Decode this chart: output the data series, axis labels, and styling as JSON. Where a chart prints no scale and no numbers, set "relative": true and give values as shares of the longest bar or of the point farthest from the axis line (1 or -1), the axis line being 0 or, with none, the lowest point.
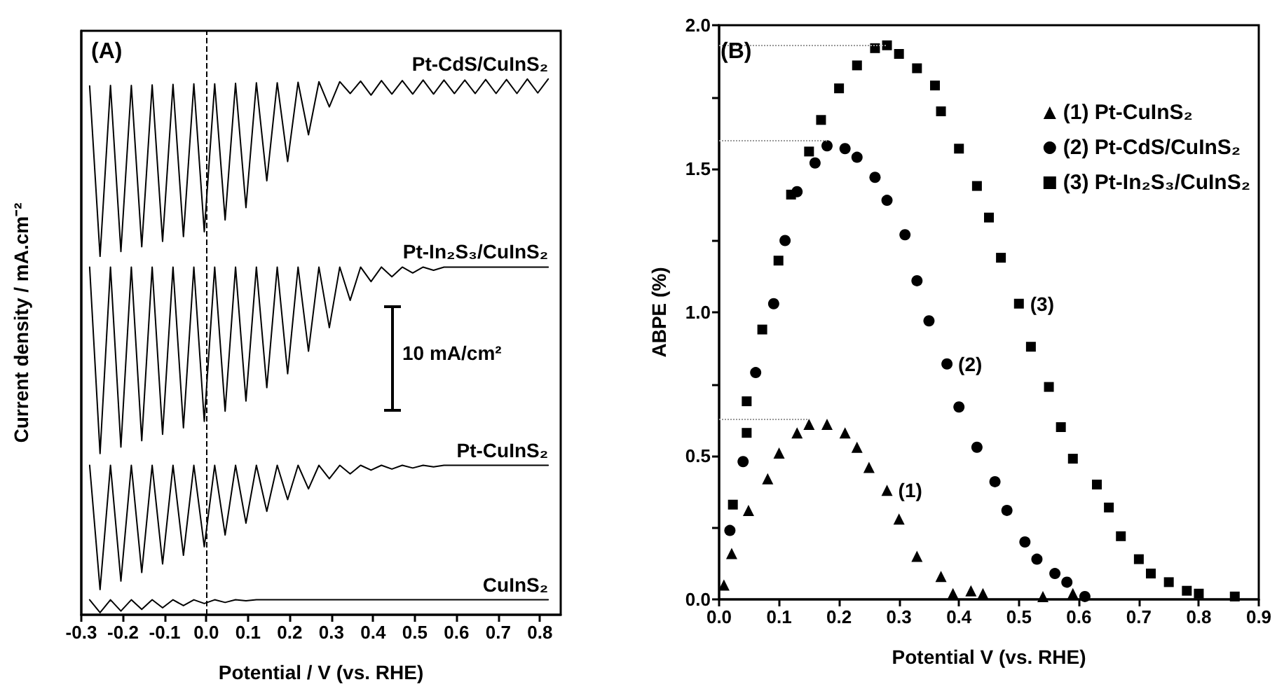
{
  "chart_data": [
    {
      "type": "line",
      "title": "(A)",
      "xlabel": "Potential / V (vs. RHE)",
      "ylabel": "Current density / mA.cm⁻²",
      "relative": true,
      "legend": false,
      "grid": false,
      "marker": "none",
      "line_style": "solid",
      "xlim": [
        -0.3,
        0.85
      ],
      "xticks": [
        -0.3,
        -0.2,
        -0.1,
        {
          "value": 0,
          "label": "0.0"
        },
        0.1,
        0.2,
        0.3,
        0.4,
        0.5,
        0.6,
        0.7,
        0.8
      ],
      "annotations": [
        "10 mA/cm²"
      ],
      "ref_lines": [
        {
          "axis": "x",
          "value": 0,
          "color": "#000000",
          "line_style": "dashed"
        }
      ],
      "series": [
        {
          "name": "Pt-CdS/CuInS₂",
          "color": "#000000",
          "x": [
            -0.28,
            -0.255,
            -0.23,
            -0.205,
            -0.18,
            -0.155,
            -0.13,
            -0.105,
            -0.08,
            -0.055,
            -0.03,
            -0.005,
            0.02,
            0.045,
            0.07,
            0.095,
            0.12,
            0.145,
            0.17,
            0.195,
            0.22,
            0.245,
            0.27,
            0.295,
            0.32,
            0.345,
            0.37,
            0.395,
            0.42,
            0.445,
            0.47,
            0.495,
            0.52,
            0.545,
            0.57,
            0.595,
            0.62,
            0.645,
            0.67,
            0.695,
            0.72,
            0.745,
            0.77,
            0.795,
            0.82
          ],
          "values": [
            0.987,
            0.669,
            0.988,
            0.678,
            0.988,
            0.687,
            0.989,
            0.697,
            0.99,
            0.706,
            0.991,
            0.715,
            0.991,
            0.737,
            0.992,
            0.76,
            0.993,
            0.81,
            0.993,
            0.846,
            0.994,
            0.896,
            0.995,
            0.948,
            0.995,
            0.973,
            0.996,
            0.97,
            0.997,
            0.972,
            0.997,
            0.972,
            0.998,
            0.972,
            0.998,
            0.973,
            0.998,
            0.973,
            0.999,
            0.973,
            0.999,
            0.973,
            1.0,
            0.974,
            1.0
          ]
        },
        {
          "name": "Pt-In₂S₃/CuInS₂",
          "color": "#000000",
          "x": [
            -0.28,
            -0.255,
            -0.23,
            -0.205,
            -0.18,
            -0.155,
            -0.13,
            -0.105,
            -0.08,
            -0.055,
            -0.03,
            -0.005,
            0.02,
            0.045,
            0.07,
            0.095,
            0.12,
            0.145,
            0.17,
            0.195,
            0.22,
            0.245,
            0.27,
            0.295,
            0.32,
            0.345,
            0.37,
            0.395,
            0.42,
            0.445,
            0.47,
            0.495,
            0.52,
            0.545,
            0.57,
            0.82
          ],
          "values": [
            0.649,
            0.301,
            0.649,
            0.313,
            0.649,
            0.325,
            0.649,
            0.337,
            0.649,
            0.349,
            0.649,
            0.361,
            0.649,
            0.38,
            0.649,
            0.399,
            0.649,
            0.424,
            0.649,
            0.45,
            0.649,
            0.492,
            0.649,
            0.536,
            0.649,
            0.587,
            0.649,
            0.622,
            0.649,
            0.631,
            0.649,
            0.638,
            0.649,
            0.643,
            0.649,
            0.649
          ]
        },
        {
          "name": "Pt-CuInS₂",
          "color": "#000000",
          "x": [
            -0.28,
            -0.255,
            -0.23,
            -0.205,
            -0.18,
            -0.155,
            -0.13,
            -0.105,
            -0.08,
            -0.055,
            -0.03,
            -0.005,
            0.02,
            0.045,
            0.07,
            0.095,
            0.12,
            0.145,
            0.17,
            0.195,
            0.22,
            0.245,
            0.27,
            0.295,
            0.32,
            0.345,
            0.37,
            0.395,
            0.42,
            0.445,
            0.47,
            0.495,
            0.52,
            0.545,
            0.57,
            0.82
          ],
          "values": [
            0.279,
            0.047,
            0.279,
            0.063,
            0.279,
            0.079,
            0.279,
            0.095,
            0.279,
            0.111,
            0.279,
            0.127,
            0.279,
            0.149,
            0.279,
            0.171,
            0.279,
            0.193,
            0.279,
            0.215,
            0.279,
            0.235,
            0.279,
            0.254,
            0.279,
            0.263,
            0.279,
            0.27,
            0.279,
            0.272,
            0.279,
            0.274,
            0.279,
            0.276,
            0.279,
            0.279
          ]
        },
        {
          "name": "CuInS₂",
          "color": "#000000",
          "x": [
            -0.28,
            -0.255,
            -0.23,
            -0.205,
            -0.18,
            -0.155,
            -0.13,
            -0.105,
            -0.08,
            -0.055,
            -0.03,
            -0.005,
            0.02,
            0.045,
            0.07,
            0.095,
            0.12,
            0.82
          ],
          "values": [
            0.028,
            0.004,
            0.028,
            0.007,
            0.028,
            0.01,
            0.028,
            0.013,
            0.028,
            0.017,
            0.028,
            0.021,
            0.028,
            0.023,
            0.028,
            0.026,
            0.028,
            0.028
          ]
        }
      ]
    },
    {
      "type": "scatter",
      "title": "(B)",
      "xlabel": "Potential V (vs. RHE)",
      "ylabel": "ABPE (%)",
      "legend": "top right",
      "grid": false,
      "xlim": [
        0,
        0.9
      ],
      "xticks": [
        {
          "value": 0,
          "label": "0.0"
        },
        0.1,
        0.2,
        0.3,
        0.4,
        0.5,
        0.6,
        0.7,
        0.8,
        0.9
      ],
      "ylim": [
        0,
        2
      ],
      "yticks": [
        {
          "value": 0,
          "label": "0.0"
        },
        {
          "value": 0.25,
          "label": null
        },
        0.5,
        {
          "value": 0.75,
          "label": null
        },
        {
          "value": 1,
          "label": "1.0"
        },
        {
          "value": 1.25,
          "label": null
        },
        1.5,
        {
          "value": 1.75,
          "label": null
        },
        {
          "value": 2,
          "label": "2.0"
        }
      ],
      "annotations": [
        {
          "text": "(1)",
          "x": 0.28,
          "y": 0.38
        },
        {
          "text": "(2)",
          "x": 0.38,
          "y": 0.82
        },
        {
          "text": "(3)",
          "x": 0.5,
          "y": 1.03
        }
      ],
      "ref_lines": [
        {
          "axis": "y",
          "value": 1.93,
          "color": "#999999",
          "line_style": "dotted"
        },
        {
          "axis": "y",
          "value": 1.6,
          "color": "#999999",
          "line_style": "dotted"
        },
        {
          "axis": "y",
          "value": 0.63,
          "color": "#999999",
          "line_style": "dotted"
        }
      ],
      "series": [
        {
          "name": "(1) Pt-CuInS₂",
          "color": "#000000",
          "marker": "triangle",
          "x": [
            0.008,
            0.021,
            0.049,
            0.081,
            0.1,
            0.13,
            0.15,
            0.18,
            0.21,
            0.23,
            0.25,
            0.28,
            0.3,
            0.33,
            0.37,
            0.39,
            0.42,
            0.44,
            0.54,
            0.59
          ],
          "values": [
            0.05,
            0.16,
            0.31,
            0.42,
            0.51,
            0.58,
            0.61,
            0.61,
            0.58,
            0.53,
            0.46,
            0.38,
            0.28,
            0.15,
            0.08,
            0.02,
            0.03,
            0.02,
            0.01,
            0.02
          ]
        },
        {
          "name": "(2) Pt-CdS/CuInS₂",
          "color": "#000000",
          "marker": "circle",
          "x": [
            0.018,
            0.04,
            0.061,
            0.091,
            0.11,
            0.13,
            0.16,
            0.18,
            0.21,
            0.23,
            0.26,
            0.28,
            0.31,
            0.33,
            0.35,
            0.38,
            0.4,
            0.43,
            0.46,
            0.48,
            0.51,
            0.53,
            0.56,
            0.58,
            0.61
          ],
          "values": [
            0.24,
            0.48,
            0.79,
            1.03,
            1.25,
            1.42,
            1.52,
            1.58,
            1.57,
            1.54,
            1.47,
            1.39,
            1.27,
            1.11,
            0.97,
            0.82,
            0.67,
            0.53,
            0.41,
            0.31,
            0.2,
            0.14,
            0.09,
            0.06,
            0.01
          ]
        },
        {
          "name": "(3) Pt-In₂S₃/CuInS₂",
          "color": "#000000",
          "marker": "square",
          "x": [
            0.023,
            0.046,
            0.046,
            0.072,
            0.099,
            0.12,
            0.15,
            0.17,
            0.2,
            0.23,
            0.26,
            0.28,
            0.3,
            0.33,
            0.36,
            0.37,
            0.4,
            0.43,
            0.45,
            0.47,
            0.5,
            0.52,
            0.55,
            0.57,
            0.59,
            0.63,
            0.65,
            0.67,
            0.7,
            0.72,
            0.75,
            0.78,
            0.8,
            0.86
          ],
          "values": [
            0.33,
            0.58,
            0.69,
            0.94,
            1.18,
            1.41,
            1.56,
            1.67,
            1.78,
            1.86,
            1.92,
            1.93,
            1.9,
            1.85,
            1.79,
            1.7,
            1.57,
            1.44,
            1.33,
            1.19,
            1.03,
            0.88,
            0.74,
            0.6,
            0.49,
            0.4,
            0.32,
            0.22,
            0.14,
            0.09,
            0.06,
            0.03,
            0.02,
            0.01
          ]
        }
      ]
    }
  ]
}
